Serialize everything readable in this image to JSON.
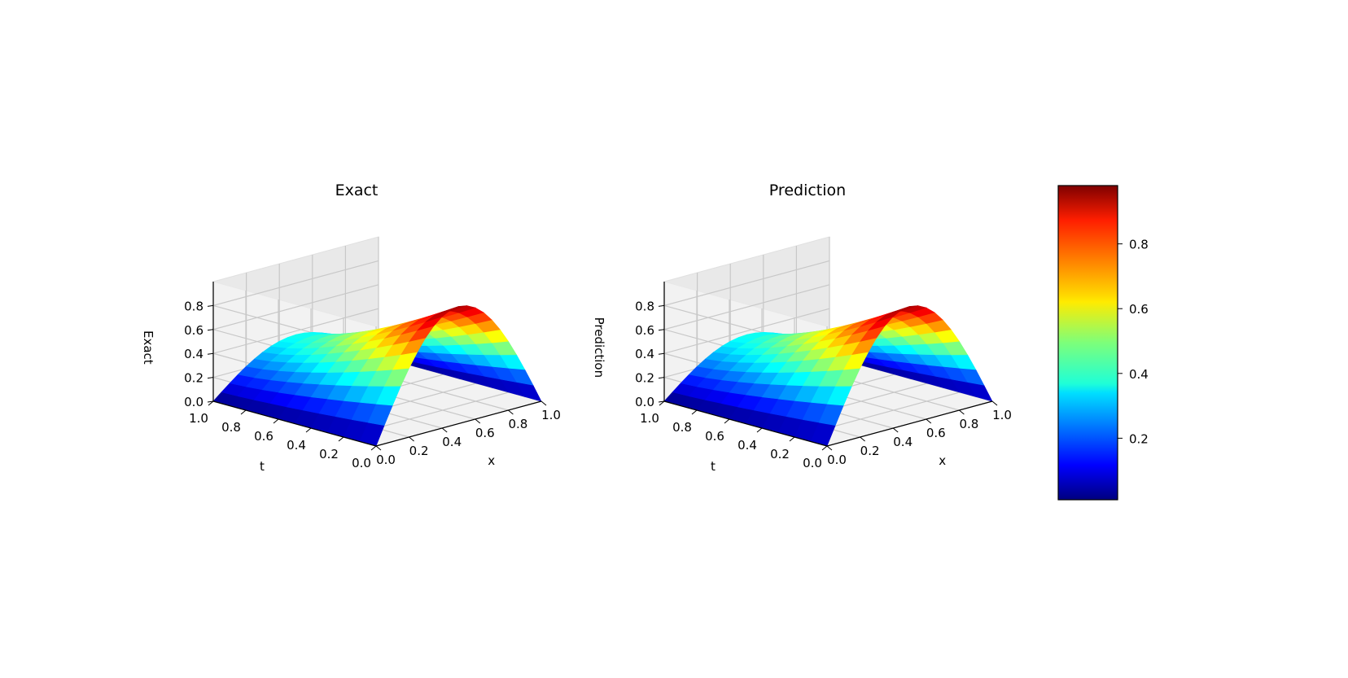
{
  "chart_data": [
    {
      "type": "surface3d",
      "title": "Exact",
      "xlabel": "x",
      "ylabel": "t",
      "zlabel": "Exact",
      "x_ticks": [
        "0.0",
        "0.2",
        "0.4",
        "0.6",
        "0.8",
        "1.0"
      ],
      "t_ticks": [
        "0.0",
        "0.2",
        "0.4",
        "0.6",
        "0.8",
        "1.0"
      ],
      "z_ticks": [
        "0.0",
        "0.2",
        "0.4",
        "0.6",
        "0.8"
      ],
      "xlim": [
        0,
        1
      ],
      "tlim": [
        0,
        1
      ],
      "zlim": [
        0,
        1
      ],
      "grid": true,
      "colormap": "jet",
      "surface": {
        "x": [
          0.0,
          0.05,
          0.1,
          0.15,
          0.2,
          0.25,
          0.3,
          0.35,
          0.4,
          0.45,
          0.5,
          0.55,
          0.6,
          0.65,
          0.7,
          0.75,
          0.8,
          0.85,
          0.9,
          0.95,
          1.0
        ],
        "t": [
          0.0,
          0.1,
          0.2,
          0.3,
          0.4,
          0.5,
          0.6,
          0.7,
          0.8,
          0.9,
          1.0
        ],
        "peak_at_t0": 0.98,
        "peak_at_t1": 0.37
      }
    },
    {
      "type": "surface3d",
      "title": "Prediction",
      "xlabel": "x",
      "ylabel": "t",
      "zlabel": "Prediction",
      "x_ticks": [
        "0.0",
        "0.2",
        "0.4",
        "0.6",
        "0.8",
        "1.0"
      ],
      "t_ticks": [
        "0.0",
        "0.2",
        "0.4",
        "0.6",
        "0.8",
        "1.0"
      ],
      "z_ticks": [
        "0.0",
        "0.2",
        "0.4",
        "0.6",
        "0.8"
      ],
      "xlim": [
        0,
        1
      ],
      "tlim": [
        0,
        1
      ],
      "zlim": [
        0,
        1
      ],
      "grid": true,
      "colormap": "jet",
      "surface": {
        "x": [
          0.0,
          0.05,
          0.1,
          0.15,
          0.2,
          0.25,
          0.3,
          0.35,
          0.4,
          0.45,
          0.5,
          0.55,
          0.6,
          0.65,
          0.7,
          0.75,
          0.8,
          0.85,
          0.9,
          0.95,
          1.0
        ],
        "t": [
          0.0,
          0.1,
          0.2,
          0.3,
          0.4,
          0.5,
          0.6,
          0.7,
          0.8,
          0.9,
          1.0
        ],
        "peak_at_t0": 0.98,
        "peak_at_t1": 0.37
      }
    }
  ],
  "colorbar": {
    "colormap": "jet",
    "range": [
      0.01,
      0.98
    ],
    "ticks": [
      "0.2",
      "0.4",
      "0.6",
      "0.8"
    ],
    "tick_values": [
      0.2,
      0.4,
      0.6,
      0.8
    ]
  }
}
